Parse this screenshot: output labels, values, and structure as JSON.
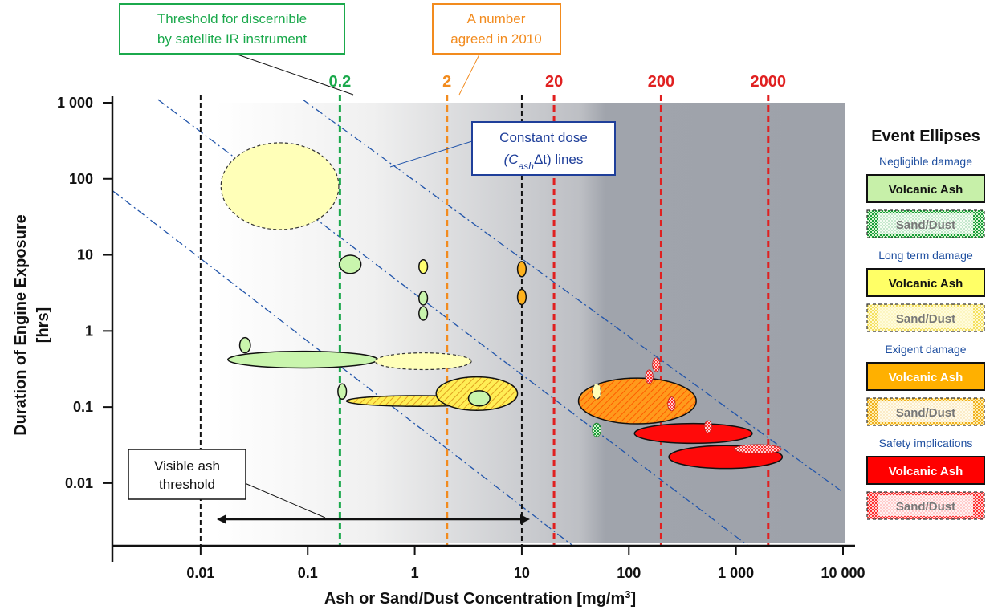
{
  "chart_data": {
    "type": "scatter",
    "title": "",
    "xlabel": "Ash or Sand/Dust Concentration [mg/m",
    "xlabel_sup": "3",
    "xlabel_end": "]",
    "ylabel": "Duration of Engine Exposure",
    "ylabel_unit": "[hrs]",
    "x_scale": "log",
    "y_scale": "log",
    "xlim": [
      0.0015,
      10000
    ],
    "ylim": [
      0.0015,
      1000
    ],
    "x_ticks": [
      0.01,
      0.1,
      1,
      10,
      100,
      1000,
      10000
    ],
    "x_tick_labels": [
      "0.01",
      "0.1",
      "1",
      "10",
      "100",
      "1 000",
      "10 000"
    ],
    "y_ticks": [
      0.01,
      0.1,
      1,
      10,
      100,
      1000
    ],
    "y_tick_labels": [
      "0.01",
      "0.1",
      "1",
      "10",
      "100",
      "1 000"
    ],
    "thresholds": [
      {
        "x": 0.2,
        "label": "0.2",
        "color": "#1ba94c"
      },
      {
        "x": 2,
        "label": "2",
        "color": "#f28b1e"
      },
      {
        "x": 20,
        "label": "20",
        "color": "#e02020"
      },
      {
        "x": 200,
        "label": "200",
        "color": "#e02020"
      },
      {
        "x": 2000,
        "label": "2000",
        "color": "#e02020"
      }
    ],
    "black_lines": [
      0.01,
      10
    ],
    "dose_lines": [
      {
        "from": [
          0.0015,
          70
        ],
        "to": [
          30,
          0.0015
        ]
      },
      {
        "from": [
          0.004,
          1100
        ],
        "to": [
          1300,
          0.0015
        ]
      },
      {
        "from": [
          0.09,
          1100
        ],
        "to": [
          9500,
          0.008
        ]
      }
    ],
    "annotations": {
      "satellite": {
        "line1": "Threshold for discernible",
        "line2": "by satellite IR instrument"
      },
      "agreed": {
        "line1": "A number",
        "line2": "agreed in 2010"
      },
      "dose_a": "Constant dose",
      "dose_b": "(C",
      "dose_sub": "ash",
      "dose_c": "Δt) lines",
      "visible": {
        "line1": "Visible ash",
        "line2": "threshold"
      }
    },
    "ellipses": [
      {
        "cx": 0.055,
        "cy": 80,
        "rx": 0.55,
        "ry": 0.57,
        "category": "long-term",
        "material": "sand"
      },
      {
        "cx": 0.25,
        "cy": 7.5,
        "rx": 0.1,
        "ry": 0.12,
        "category": "negligible",
        "material": "ash"
      },
      {
        "cx": 0.026,
        "cy": 0.65,
        "rx": 0.05,
        "ry": 0.1,
        "category": "negligible",
        "material": "ash"
      },
      {
        "cx": 0.09,
        "cy": 0.42,
        "rx": 0.7,
        "ry": 0.11,
        "category": "negligible",
        "material": "ash"
      },
      {
        "cx": 1.2,
        "cy": 0.4,
        "rx": 0.45,
        "ry": 0.11,
        "category": "long-term",
        "material": "sand"
      },
      {
        "cx": 1.1,
        "cy": 0.12,
        "rx": 0.68,
        "ry": 0.07,
        "category": "long-term",
        "material": "ash-hatch"
      },
      {
        "cx": 0.21,
        "cy": 0.16,
        "rx": 0.04,
        "ry": 0.1,
        "category": "negligible",
        "material": "ash"
      },
      {
        "cx": 3.8,
        "cy": 0.15,
        "rx": 0.38,
        "ry": 0.22,
        "category": "long-term",
        "material": "ash-hatch"
      },
      {
        "cx": 4.0,
        "cy": 0.13,
        "rx": 0.1,
        "ry": 0.1,
        "category": "negligible",
        "material": "ash"
      },
      {
        "cx": 1.2,
        "cy": 7,
        "rx": 0.04,
        "ry": 0.09,
        "category": "long-term",
        "material": "ash"
      },
      {
        "cx": 1.2,
        "cy": 2.7,
        "rx": 0.04,
        "ry": 0.09,
        "category": "negligible",
        "material": "ash"
      },
      {
        "cx": 1.2,
        "cy": 1.7,
        "rx": 0.04,
        "ry": 0.09,
        "category": "negligible",
        "material": "ash"
      },
      {
        "cx": 10,
        "cy": 6.5,
        "rx": 0.04,
        "ry": 0.1,
        "category": "exigent",
        "material": "ash"
      },
      {
        "cx": 10,
        "cy": 2.8,
        "rx": 0.04,
        "ry": 0.1,
        "category": "exigent",
        "material": "ash"
      },
      {
        "cx": 120,
        "cy": 0.12,
        "rx": 0.55,
        "ry": 0.3,
        "category": "exigent",
        "material": "ash-hatch"
      },
      {
        "cx": 50,
        "cy": 0.16,
        "rx": 0.04,
        "ry": 0.1,
        "category": "long-term",
        "material": "sand"
      },
      {
        "cx": 180,
        "cy": 0.36,
        "rx": 0.035,
        "ry": 0.09,
        "category": "safety",
        "material": "sand"
      },
      {
        "cx": 155,
        "cy": 0.25,
        "rx": 0.035,
        "ry": 0.09,
        "category": "safety",
        "material": "sand"
      },
      {
        "cx": 250,
        "cy": 0.11,
        "rx": 0.035,
        "ry": 0.09,
        "category": "safety",
        "material": "sand"
      },
      {
        "cx": 50,
        "cy": 0.05,
        "rx": 0.04,
        "ry": 0.09,
        "category": "negligible",
        "material": "sand"
      },
      {
        "cx": 400,
        "cy": 0.045,
        "rx": 0.55,
        "ry": 0.13,
        "category": "safety",
        "material": "ash"
      },
      {
        "cx": 550,
        "cy": 0.055,
        "rx": 0.035,
        "ry": 0.08,
        "category": "safety",
        "material": "sand"
      },
      {
        "cx": 800,
        "cy": 0.022,
        "rx": 0.53,
        "ry": 0.15,
        "category": "safety",
        "material": "ash"
      },
      {
        "cx": 1600,
        "cy": 0.028,
        "rx": 0.22,
        "ry": 0.06,
        "category": "safety",
        "material": "sand"
      }
    ],
    "visible_ash_range": [
      0.01,
      10
    ],
    "legend": {
      "title": "Event Ellipses",
      "groups": [
        {
          "heading": "Negligible damage",
          "ash": "Volcanic Ash",
          "sand": "Sand/Dust",
          "color": "#c7f0a9",
          "sandfill": "#1a9e3a",
          "key": "negligible"
        },
        {
          "heading": "Long term damage",
          "ash": "Volcanic Ash",
          "sand": "Sand/Dust",
          "color": "#ffff66",
          "sandfill": "#fff7b0",
          "key": "long-term"
        },
        {
          "heading": "Exigent damage",
          "ash": "Volcanic Ash",
          "sand": "Sand/Dust",
          "color": "#ffb000",
          "sandfill": "#f2c030",
          "key": "exigent"
        },
        {
          "heading": "Safety implications",
          "ash": "Volcanic Ash",
          "sand": "Sand/Dust",
          "color": "#ff0000",
          "sandfill": "#ff4040",
          "key": "safety"
        }
      ]
    },
    "colors": {
      "negligible": "#c9f5ad",
      "long-term": "#ffff70",
      "long-term-sand": "#ffffb8",
      "exigent": "#ffb21c",
      "safety": "#ff0a0a",
      "gray": "#9fa3ad",
      "dose": "#2255aa"
    }
  }
}
